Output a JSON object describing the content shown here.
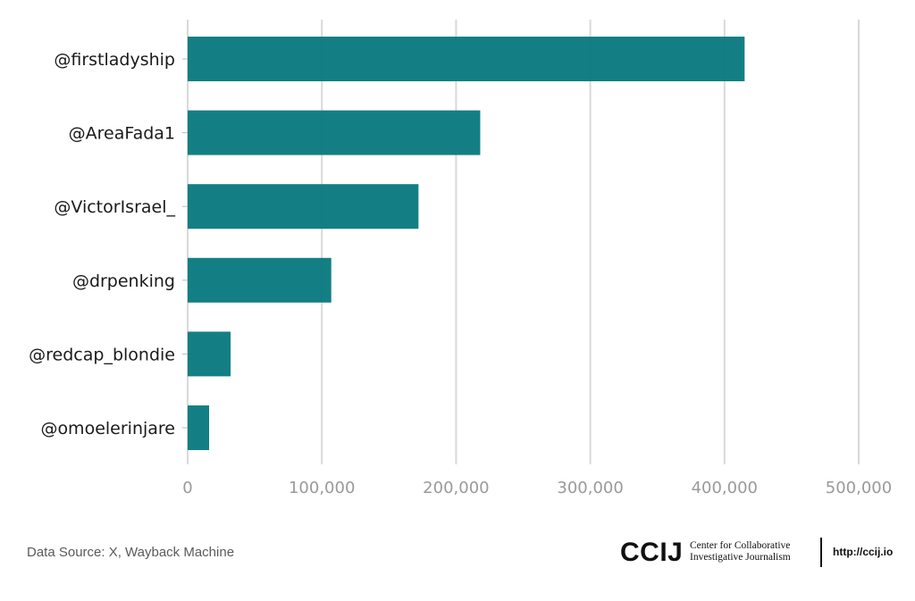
{
  "chart_data": {
    "type": "bar",
    "orientation": "horizontal",
    "categories": [
      "@firstladyship",
      "@AreaFada1",
      "@VictorIsrael_",
      "@drpenking",
      "@redcap_blondie",
      "@omoelerinjare"
    ],
    "values": [
      415000,
      218000,
      172000,
      107000,
      32000,
      16000
    ],
    "xlim": [
      0,
      500000
    ],
    "x_ticks": [
      0,
      100000,
      200000,
      300000,
      400000,
      500000
    ],
    "x_tick_labels": [
      "0",
      "100,000",
      "200,000",
      "300,000",
      "400,000",
      "500,000"
    ],
    "title": "",
    "xlabel": "",
    "ylabel": "",
    "grid": "vertical",
    "bar_color": "#0b7b80"
  },
  "footer": {
    "source": "Data Source: X, Wayback Machine",
    "logo_mark": "CCIJ",
    "logo_line1": "Center for Collaborative",
    "logo_line2": "Investigative Journalism",
    "url": "http://ccij.io"
  }
}
